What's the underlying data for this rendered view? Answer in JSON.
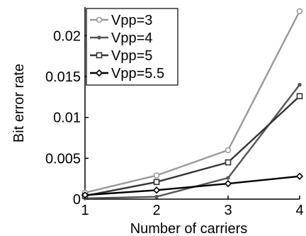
{
  "chart_data": {
    "type": "line",
    "title": "",
    "xlabel": "Number of carriers",
    "ylabel": "Bit error rate",
    "x": [
      1,
      2,
      3,
      4
    ],
    "xlim": [
      1,
      4
    ],
    "ylim": [
      0,
      0.0235
    ],
    "xticks": [
      1,
      2,
      3,
      4
    ],
    "xtick_labels": [
      "1",
      "2",
      "3",
      "4"
    ],
    "yticks": [
      0,
      0.005,
      0.01,
      0.015,
      0.02
    ],
    "ytick_labels": [
      "0",
      "0.005",
      "0.01",
      "0.015",
      "0.02"
    ],
    "grid": false,
    "legend_position": "top-left",
    "series": [
      {
        "name": "Vpp=3",
        "values": [
          0.0008,
          0.0029,
          0.006,
          0.023
        ],
        "color": "#999999",
        "marker": "circle-open"
      },
      {
        "name": "Vpp=4",
        "values": [
          0.0001,
          0.0003,
          0.0026,
          0.014
        ],
        "color": "#555555",
        "marker": "dot"
      },
      {
        "name": "Vpp=5",
        "values": [
          0.0004,
          0.0021,
          0.0045,
          0.0126
        ],
        "color": "#333333",
        "marker": "square-open"
      },
      {
        "name": "Vpp=5.5",
        "values": [
          0.0005,
          0.0011,
          0.0019,
          0.0028
        ],
        "color": "#000000",
        "marker": "diamond-open"
      }
    ]
  }
}
